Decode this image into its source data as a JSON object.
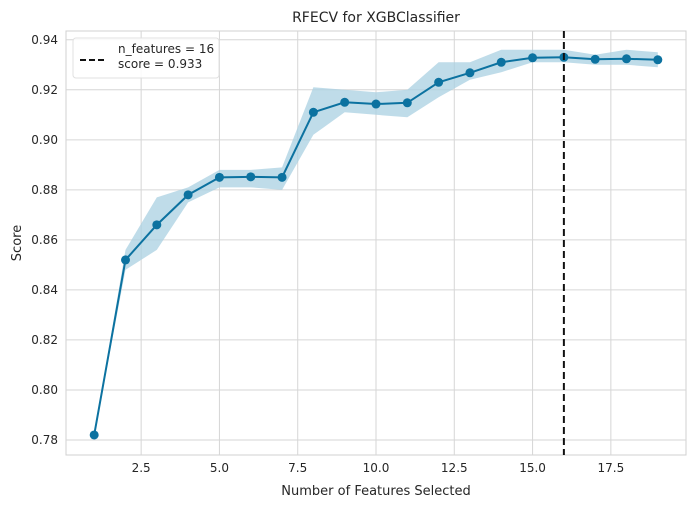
{
  "chart_data": {
    "type": "line",
    "title": "RFECV for XGBClassifier",
    "xlabel": "Number of Features Selected",
    "ylabel": "Score",
    "xlim": [
      0.1,
      19.9
    ],
    "ylim": [
      0.774,
      0.9435
    ],
    "x_ticks": [
      2.5,
      5.0,
      7.5,
      10.0,
      12.5,
      15.0,
      17.5
    ],
    "x_tick_labels": [
      "2.5",
      "5.0",
      "7.5",
      "10.0",
      "12.5",
      "15.0",
      "17.5"
    ],
    "y_ticks": [
      0.78,
      0.8,
      0.82,
      0.84,
      0.86,
      0.88,
      0.9,
      0.92,
      0.94
    ],
    "y_tick_labels": [
      "0.78",
      "0.80",
      "0.82",
      "0.84",
      "0.86",
      "0.88",
      "0.90",
      "0.92",
      "0.94"
    ],
    "grid": true,
    "legend_position": "top-left",
    "series": [
      {
        "x": [
          1,
          2,
          3,
          4,
          5,
          6,
          7,
          8,
          9,
          10,
          11,
          12,
          13,
          14,
          15,
          16,
          17,
          18,
          19
        ],
        "values": [
          0.782,
          0.852,
          0.866,
          0.878,
          0.885,
          0.8852,
          0.885,
          0.911,
          0.915,
          0.9143,
          0.9148,
          0.923,
          0.9268,
          0.931,
          0.9328,
          0.933,
          0.9322,
          0.9324,
          0.932
        ],
        "lower": [
          0.782,
          0.848,
          0.856,
          0.875,
          0.881,
          0.881,
          0.88,
          0.902,
          0.911,
          0.91,
          0.909,
          0.917,
          0.924,
          0.927,
          0.931,
          0.931,
          0.93,
          0.93,
          0.929
        ],
        "upper": [
          0.782,
          0.856,
          0.877,
          0.881,
          0.888,
          0.888,
          0.889,
          0.921,
          0.92,
          0.919,
          0.92,
          0.931,
          0.931,
          0.936,
          0.936,
          0.936,
          0.934,
          0.936,
          0.935
        ],
        "color": "#0c72a0",
        "band_color": "#a9d0e2"
      }
    ],
    "reference_line": {
      "x": 16,
      "color": "#111111",
      "style": "dashed"
    },
    "legend": {
      "line1": "n_features = 16",
      "line2": "score = 0.933"
    }
  }
}
